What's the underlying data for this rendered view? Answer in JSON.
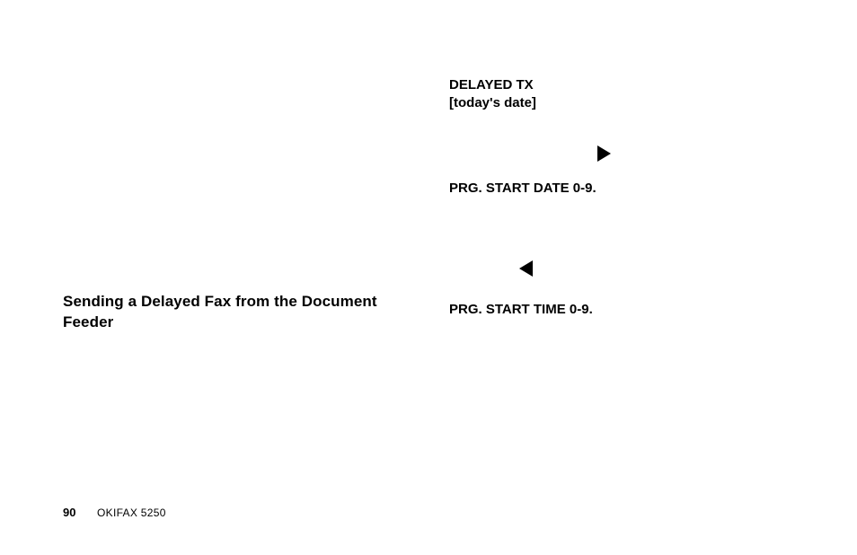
{
  "heading": "Sending a Delayed Fax from the Document Feeder",
  "display": {
    "line1a": "DELAYED TX",
    "line1b": "[today's date]",
    "line2": "PRG. START DATE 0-9.",
    "line3": "PRG. START TIME 0-9."
  },
  "footer": {
    "page": "90",
    "model": "OKIFAX 5250"
  },
  "colors": {
    "text": "#000000",
    "background": "#ffffff"
  },
  "typography": {
    "heading_fontsize": 17,
    "body_fontsize": 15,
    "footer_page_fontsize": 13,
    "footer_model_fontsize": 12
  }
}
